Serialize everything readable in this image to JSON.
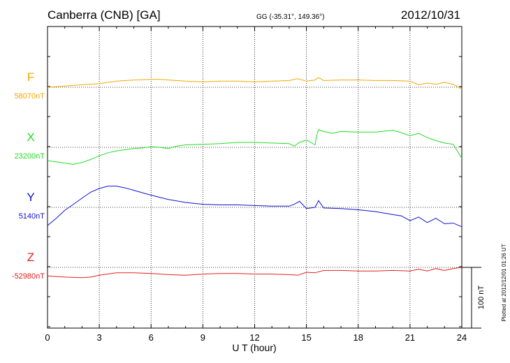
{
  "header": {
    "station": "Canberra (CNB)  [GA]",
    "coords": "GG (-35.31°, 149.36°)",
    "date": "2012/10/31"
  },
  "side_note": "Plotted at 2012/12/01 01:26 UT",
  "scale_bar_label": "100 nT",
  "colors": {
    "F": "#f0a800",
    "X": "#22dd22",
    "Y": "#1010d0",
    "Z": "#e02020",
    "axis": "#000000"
  },
  "chart_data": {
    "type": "line",
    "xlabel": "U T (hour)",
    "xlim": [
      0,
      24
    ],
    "x_ticks": [
      0,
      3,
      6,
      9,
      12,
      15,
      18,
      21,
      24
    ],
    "series": [
      {
        "name": "F",
        "baseline_label": "58070nT",
        "baseline": 58070,
        "x": [
          0,
          1,
          2,
          3,
          4,
          5,
          6,
          6.5,
          7,
          8,
          9,
          10,
          11,
          12,
          13,
          14,
          14.5,
          15,
          15.5,
          15.7,
          16,
          17,
          18,
          19,
          20,
          21,
          21.5,
          22,
          22.5,
          23,
          23.5,
          24
        ],
        "values": [
          58070,
          58072,
          58074,
          58076,
          58080,
          58082,
          58083,
          58083,
          58082,
          58080,
          58079,
          58080,
          58080,
          58079,
          58080,
          58081,
          58084,
          58080,
          58082,
          58086,
          58081,
          58082,
          58082,
          58081,
          58081,
          58080,
          58074,
          58077,
          58075,
          58078,
          58075,
          58067
        ]
      },
      {
        "name": "X",
        "baseline_label": "23200nT",
        "baseline": 23200,
        "x": [
          0,
          0.5,
          1,
          1.5,
          2,
          2.5,
          3,
          3.5,
          4,
          4.5,
          5,
          5.5,
          6,
          6.5,
          7,
          7.5,
          8,
          9,
          10,
          11,
          12,
          13,
          14,
          14.3,
          14.6,
          15,
          15.5,
          15.6,
          15.7,
          16,
          16.5,
          17,
          18,
          19,
          20,
          20.5,
          21,
          21.5,
          22,
          22.5,
          23,
          23.5,
          24
        ],
        "values": [
          23178,
          23176,
          23174,
          23172,
          23175,
          23180,
          23186,
          23191,
          23194,
          23196,
          23198,
          23199,
          23201,
          23200,
          23198,
          23202,
          23204,
          23205,
          23206,
          23208,
          23208,
          23207,
          23206,
          23202,
          23208,
          23212,
          23204,
          23220,
          23229,
          23226,
          23223,
          23226,
          23225,
          23225,
          23228,
          23224,
          23219,
          23223,
          23216,
          23211,
          23207,
          23205,
          23182
        ]
      },
      {
        "name": "Y",
        "baseline_label": "5140nT",
        "baseline": 5140,
        "x": [
          0,
          0.5,
          1,
          1.5,
          2,
          2.5,
          3,
          3.5,
          4,
          4.5,
          5,
          6,
          7,
          8,
          9,
          10,
          11,
          12,
          13,
          14,
          14.3,
          14.6,
          15,
          15.5,
          15.7,
          16,
          17,
          18,
          19,
          20,
          20.5,
          21,
          21.5,
          22,
          22.5,
          23,
          23.5,
          24
        ],
        "values": [
          5110,
          5122,
          5135,
          5145,
          5155,
          5165,
          5171,
          5175,
          5175,
          5172,
          5168,
          5160,
          5153,
          5148,
          5145,
          5144,
          5144,
          5143,
          5142,
          5142,
          5145,
          5150,
          5138,
          5140,
          5151,
          5139,
          5138,
          5136,
          5133,
          5128,
          5126,
          5118,
          5124,
          5115,
          5122,
          5113,
          5114,
          5108
        ]
      },
      {
        "name": "Z",
        "baseline_label": "-52980nT",
        "baseline": -52980,
        "x": [
          0,
          1,
          2,
          2.5,
          3,
          4,
          5,
          6,
          7,
          8,
          9,
          10,
          11,
          12,
          13,
          14,
          14.5,
          15,
          15.5,
          16,
          17,
          18,
          19,
          20,
          21,
          21.5,
          22,
          22.5,
          23,
          23.5,
          24
        ],
        "values": [
          -52994,
          -52996,
          -52997,
          -52996,
          -52993,
          -52989,
          -52989,
          -52990,
          -52992,
          -52993,
          -52991,
          -52990,
          -52990,
          -52991,
          -52991,
          -52992,
          -52993,
          -52988,
          -52989,
          -52985,
          -52985,
          -52986,
          -52986,
          -52985,
          -52986,
          -52983,
          -52986,
          -52982,
          -52985,
          -52982,
          -52980
        ]
      }
    ],
    "grid": true
  }
}
